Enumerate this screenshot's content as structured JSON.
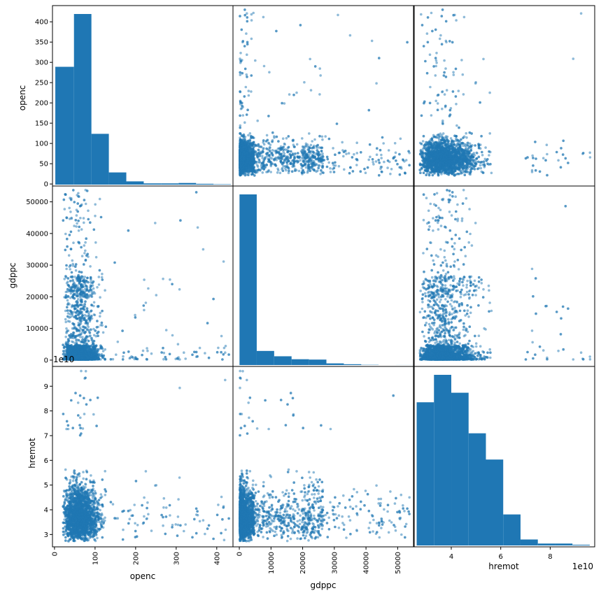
{
  "chart_data": {
    "type": "scatter",
    "title": "",
    "variables": [
      "openc",
      "gdppc",
      "hremot"
    ],
    "axis_labels": {
      "openc": "openc",
      "gdppc": "gdppc",
      "hremot": "hremot"
    },
    "offset_texts": {
      "hremot_y": "1e10",
      "hremot_x": "1e10"
    },
    "ranges": {
      "openc": [
        -5,
        440
      ],
      "gdppc": [
        -2000,
        55000
      ],
      "hremot": [
        25000000000,
        98000000000
      ]
    },
    "ticks": {
      "openc_y": {
        "values": [
          0,
          50,
          100,
          150,
          200,
          250,
          300,
          350,
          400
        ],
        "labels": [
          "0",
          "50",
          "100",
          "150",
          "200",
          "250",
          "300",
          "350",
          "400"
        ]
      },
      "gdppc_y": {
        "values": [
          0,
          10000,
          20000,
          30000,
          40000,
          50000
        ],
        "labels": [
          "0",
          "10000",
          "20000",
          "30000",
          "40000",
          "50000"
        ]
      },
      "hremot_y": {
        "values": [
          30000000000,
          40000000000,
          50000000000,
          60000000000,
          70000000000,
          80000000000,
          90000000000
        ],
        "labels": [
          "3",
          "4",
          "5",
          "6",
          "7",
          "8",
          "9"
        ]
      },
      "openc_x": {
        "values": [
          0,
          100,
          200,
          300,
          400
        ],
        "labels": [
          "0",
          "100",
          "200",
          "300",
          "400"
        ]
      },
      "gdppc_x": {
        "values": [
          0,
          10000,
          20000,
          30000,
          40000,
          50000
        ],
        "labels": [
          "0",
          "10000",
          "20000",
          "30000",
          "40000",
          "50000"
        ]
      },
      "hremot_x": {
        "values": [
          40000000000,
          60000000000,
          80000000000
        ],
        "labels": [
          "4",
          "6",
          "8"
        ]
      }
    },
    "histograms": {
      "openc": {
        "bin_edges": [
          2,
          48,
          91,
          134,
          177,
          220,
          263,
          306,
          349,
          392,
          435
        ],
        "counts": [
          290,
          420,
          125,
          30,
          8,
          3,
          3,
          4,
          2,
          1
        ]
      },
      "gdppc": {
        "bin_edges": [
          60,
          5500,
          11000,
          16500,
          22000,
          27500,
          33000,
          38500,
          44000,
          49500,
          55000
        ],
        "counts": [
          2880,
          238,
          148,
          98,
          92,
          28,
          14,
          4,
          0,
          1
        ]
      },
      "hremot": {
        "bin_edges": [
          26000000000,
          33000000000,
          40000000000,
          47000000000,
          54000000000,
          61000000000,
          68000000000,
          75000000000,
          82000000000,
          89000000000,
          96000000000
        ],
        "counts": [
          600,
          715,
          640,
          470,
          360,
          130,
          25,
          8,
          8,
          3
        ]
      }
    },
    "scatter_points": 3000,
    "legend": "none",
    "grid": false
  }
}
